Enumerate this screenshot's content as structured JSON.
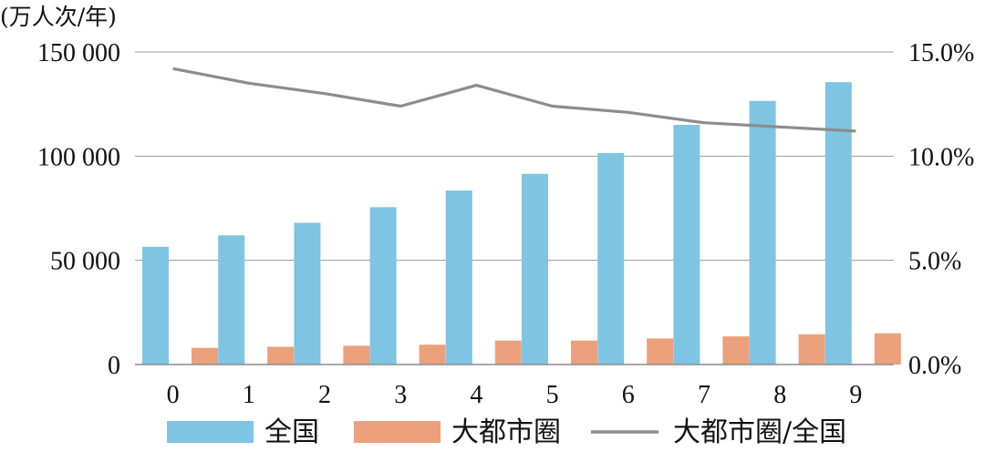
{
  "chart_data": {
    "type": "bar",
    "y_unit_label": "(万人次/年)",
    "categories": [
      "0",
      "1",
      "2",
      "3",
      "4",
      "5",
      "6",
      "7",
      "8",
      "9"
    ],
    "series": [
      {
        "name": "全国",
        "type": "bar",
        "axis": "left",
        "color": "#7EC4E3",
        "values": [
          56500,
          62000,
          68000,
          75500,
          83500,
          91500,
          101500,
          115000,
          126500,
          135500
        ]
      },
      {
        "name": "大都市圈",
        "type": "bar",
        "axis": "left",
        "color": "#EBA07B",
        "values": [
          8000,
          8500,
          9000,
          9500,
          11500,
          11500,
          12500,
          13500,
          14500,
          15000
        ]
      },
      {
        "name": "大都市圈/全国",
        "type": "line",
        "axis": "right",
        "color": "#8C8C8C",
        "values": [
          14.2,
          13.5,
          13.0,
          12.4,
          13.4,
          12.4,
          12.1,
          11.6,
          11.4,
          11.2
        ]
      }
    ],
    "y_left": {
      "min": 0,
      "max": 150000,
      "ticks": [
        0,
        50000,
        100000,
        150000
      ],
      "tick_labels": [
        "0",
        "50 000",
        "100 000",
        "150 000"
      ]
    },
    "y_right": {
      "min": 0,
      "max": 15,
      "ticks": [
        0,
        5,
        10,
        15
      ],
      "tick_labels": [
        "0.0%",
        "5.0%",
        "10.0%",
        "15.0%"
      ]
    },
    "grid": true,
    "legend_position": "bottom"
  }
}
